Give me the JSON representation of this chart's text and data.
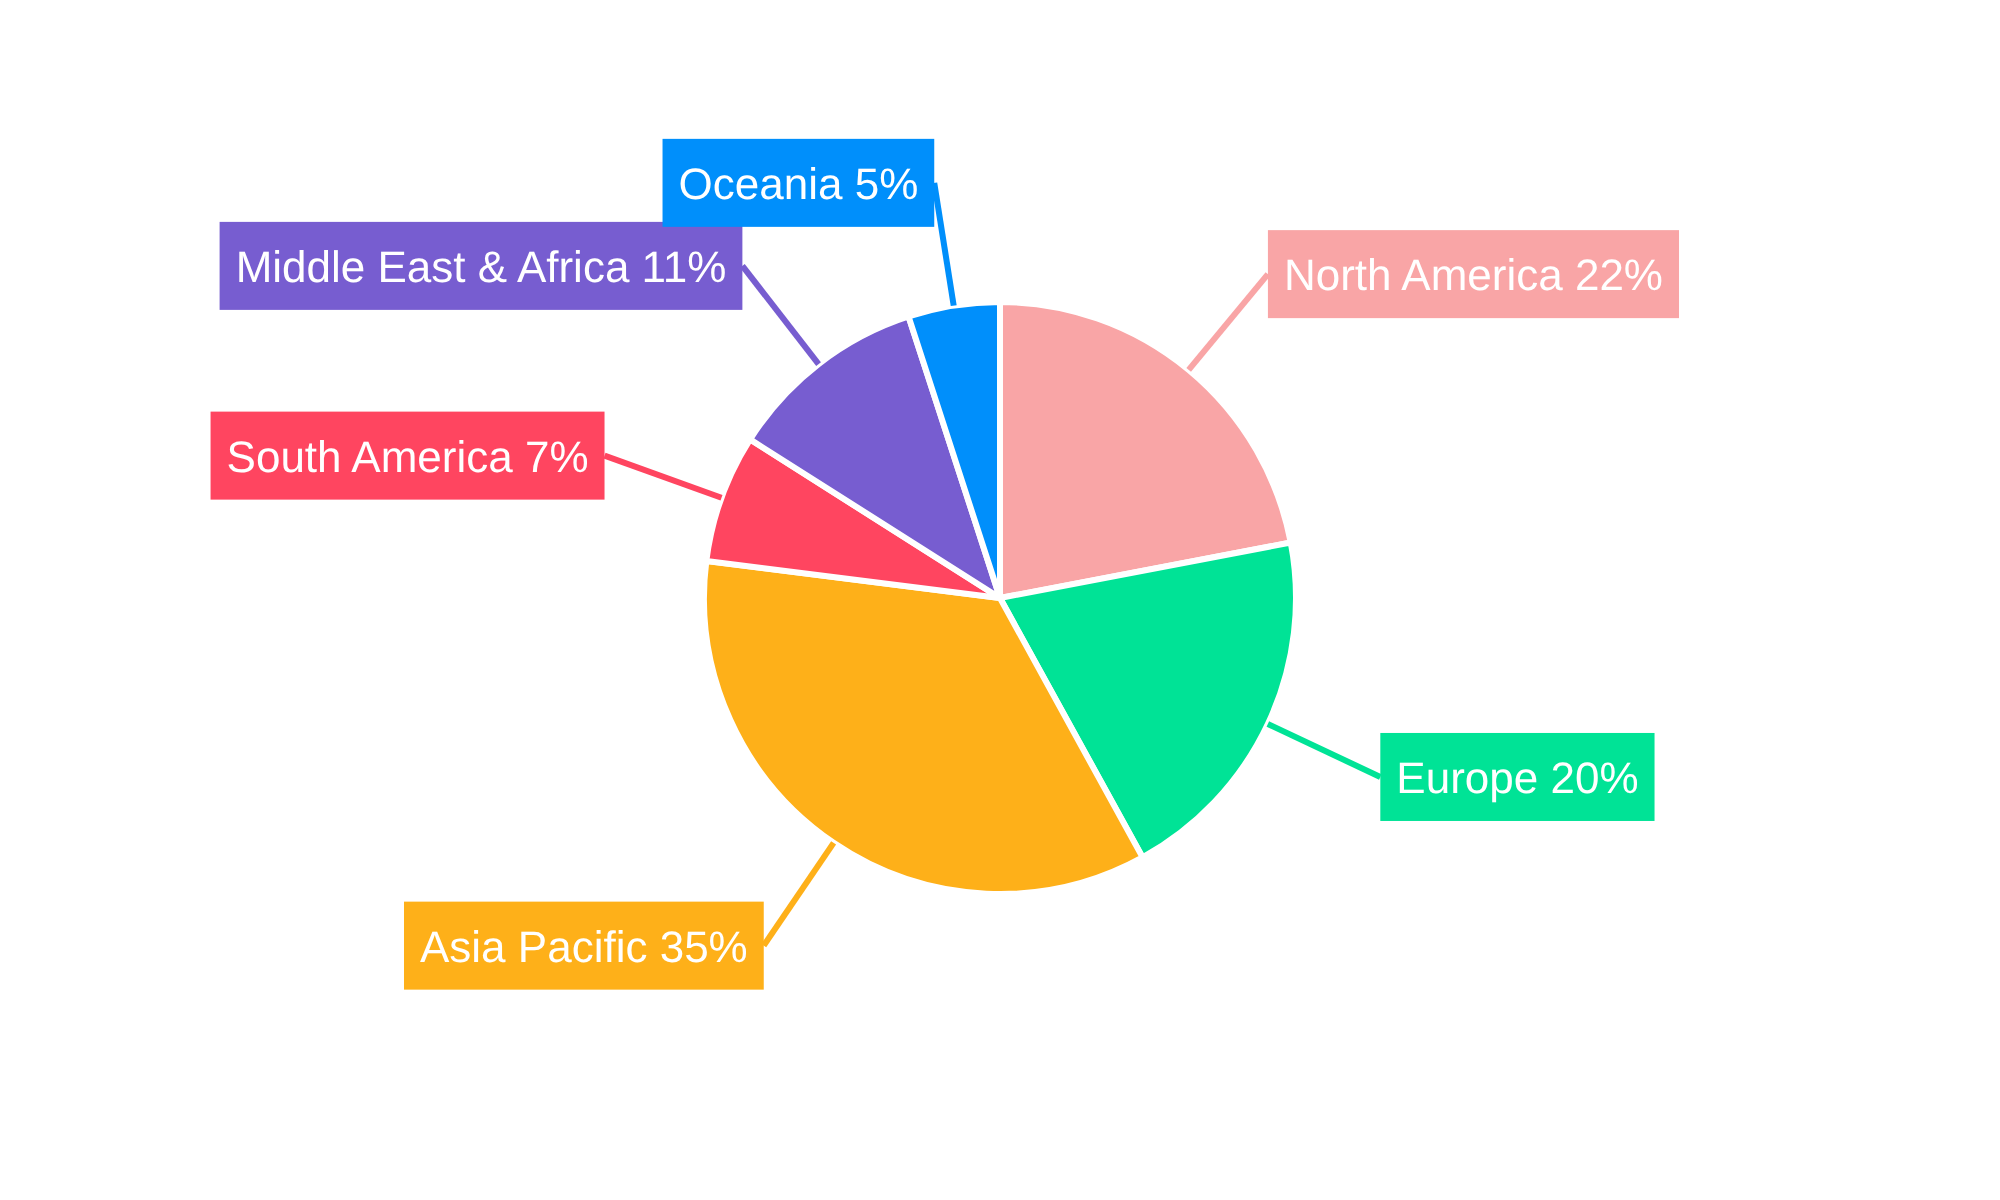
{
  "chart_data": {
    "type": "pie",
    "categories": [
      "North America",
      "Europe",
      "Asia Pacific",
      "South America",
      "Middle East & Africa",
      "Oceania"
    ],
    "values": [
      22,
      20,
      35,
      7,
      11,
      5
    ],
    "colors": [
      "#f9a5a6",
      "#00e396",
      "#feb019",
      "#ff4560",
      "#775dd0",
      "#008ffb"
    ],
    "value_labels": [
      "22%",
      "20%",
      "35%",
      "7%",
      "11%",
      "5%"
    ],
    "legend": false
  }
}
